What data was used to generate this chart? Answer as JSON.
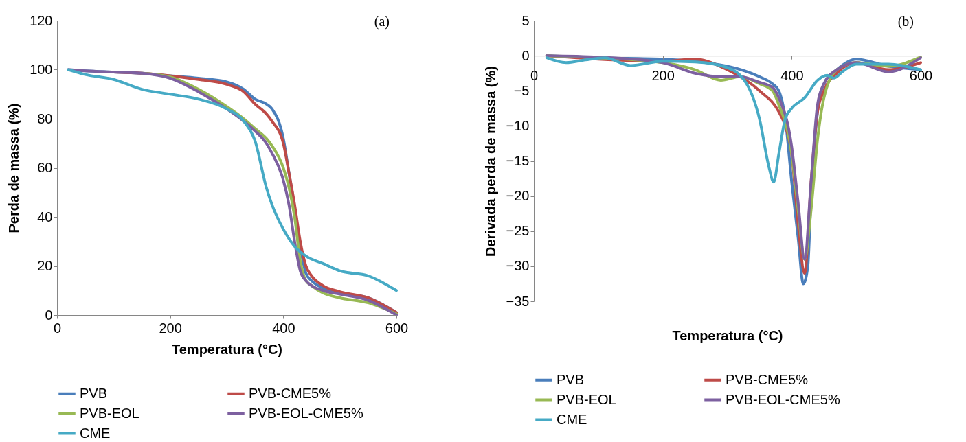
{
  "chart_data": [
    {
      "type": "line",
      "xlabel": "Temperatura (°C)",
      "ylabel": "Perda de massa (%)",
      "annotations": [
        "(a)"
      ],
      "xlim": [
        0,
        600
      ],
      "xticks": [
        0,
        200,
        400,
        600
      ],
      "ylim": [
        0,
        120
      ],
      "yticks": [
        0,
        20,
        40,
        60,
        80,
        100,
        120
      ],
      "grid": false,
      "legend": "bottom",
      "series": [
        {
          "name": "PVB",
          "color": "#4a7ebb",
          "x": [
            20,
            50,
            100,
            150,
            200,
            250,
            300,
            330,
            350,
            370,
            380,
            400,
            410,
            420,
            430,
            440,
            450,
            470,
            500,
            550,
            600
          ],
          "values": [
            100,
            99.5,
            99,
            98.5,
            97.5,
            96.5,
            95,
            92,
            88,
            86,
            84,
            72,
            58,
            44,
            28,
            17,
            14,
            11,
            9,
            7,
            1
          ]
        },
        {
          "name": "PVB-CME5%",
          "color": "#be4b48",
          "x": [
            100,
            150,
            200,
            250,
            300,
            330,
            350,
            370,
            380,
            400,
            410,
            420,
            430,
            440,
            450,
            470,
            500,
            550,
            600
          ],
          "values": [
            99,
            98.5,
            97.5,
            96,
            94,
            91,
            86,
            82,
            79,
            70,
            58,
            45,
            30,
            20,
            16,
            12,
            9.5,
            7,
            1
          ]
        },
        {
          "name": "PVB-EOL",
          "color": "#98b954",
          "x": [
            150,
            200,
            250,
            300,
            330,
            350,
            370,
            380,
            400,
            410,
            420,
            430,
            440,
            450,
            470,
            500,
            550,
            600
          ],
          "values": [
            98.5,
            97,
            92,
            85,
            80,
            76,
            72,
            69,
            60,
            52,
            40,
            22,
            14,
            12,
            9,
            7,
            5,
            0.5
          ]
        },
        {
          "name": "PVB-EOL-CME5%",
          "color": "#7d60a0",
          "x": [
            20,
            50,
            100,
            150,
            200,
            250,
            300,
            330,
            350,
            370,
            380,
            400,
            410,
            420,
            430,
            440,
            450,
            470,
            500,
            550,
            600
          ],
          "values": [
            100,
            99.5,
            99,
            98.5,
            96.5,
            91,
            84,
            79,
            75,
            70,
            66,
            55,
            45,
            30,
            18,
            14,
            12,
            10,
            8.5,
            6,
            0
          ]
        },
        {
          "name": "CME",
          "color": "#46aac5",
          "x": [
            20,
            50,
            100,
            150,
            200,
            250,
            300,
            330,
            350,
            370,
            380,
            400,
            420,
            440,
            470,
            500,
            550,
            600
          ],
          "values": [
            100,
            98,
            96,
            92,
            90,
            88,
            84,
            79,
            71,
            52,
            45,
            35,
            28,
            24,
            21,
            18,
            16,
            10
          ]
        }
      ]
    },
    {
      "type": "line",
      "xlabel": "Temperatura (°C)",
      "ylabel": "Derivada perda de massa (%)",
      "annotations": [
        "(b)"
      ],
      "xlim": [
        0,
        600
      ],
      "xticks": [
        0,
        200,
        400,
        600
      ],
      "ylim": [
        -35,
        5
      ],
      "yticks": [
        -35,
        -30,
        -25,
        -20,
        -15,
        -10,
        -5,
        0,
        5
      ],
      "grid": false,
      "legend": "bottom",
      "series": [
        {
          "name": "PVB",
          "color": "#4a7ebb",
          "x": [
            20,
            100,
            200,
            300,
            350,
            370,
            380,
            390,
            400,
            410,
            418,
            425,
            430,
            440,
            450,
            470,
            500,
            550,
            600
          ],
          "values": [
            0,
            -0.3,
            -0.5,
            -1.5,
            -3,
            -4,
            -5,
            -9,
            -18,
            -26,
            -32.5,
            -30,
            -20,
            -8,
            -4,
            -2,
            -0.5,
            -1.5,
            -2
          ]
        },
        {
          "name": "PVB-CME5%",
          "color": "#be4b48",
          "x": [
            20,
            100,
            200,
            250,
            300,
            350,
            380,
            390,
            400,
            410,
            420,
            430,
            440,
            450,
            470,
            500,
            550,
            600
          ],
          "values": [
            0,
            -0.5,
            -0.8,
            -0.5,
            -2,
            -5,
            -8,
            -10,
            -14,
            -24,
            -31,
            -18,
            -8,
            -5,
            -2.5,
            -1,
            -2,
            -1
          ]
        },
        {
          "name": "PVB-EOL",
          "color": "#98b954",
          "x": [
            20,
            100,
            200,
            250,
            290,
            320,
            350,
            370,
            380,
            400,
            410,
            420,
            430,
            440,
            450,
            470,
            500,
            550,
            600
          ],
          "values": [
            0,
            -0.3,
            -1,
            -2,
            -3.5,
            -3,
            -4,
            -5,
            -7,
            -14,
            -22,
            -29,
            -22,
            -12,
            -6,
            -2,
            -1,
            -1.5,
            -0.2
          ]
        },
        {
          "name": "PVB-EOL-CME5%",
          "color": "#7d60a0",
          "x": [
            20,
            100,
            200,
            250,
            290,
            320,
            350,
            370,
            380,
            400,
            410,
            420,
            430,
            440,
            450,
            470,
            500,
            550,
            600
          ],
          "values": [
            0,
            -0.2,
            -1,
            -2.5,
            -3,
            -3,
            -3.8,
            -4.5,
            -6,
            -13,
            -21,
            -29,
            -18,
            -7,
            -4,
            -2,
            -1,
            -2.3,
            -0.3
          ]
        },
        {
          "name": "CME",
          "color": "#46aac5",
          "x": [
            20,
            50,
            80,
            110,
            150,
            200,
            250,
            300,
            330,
            350,
            365,
            372,
            380,
            390,
            400,
            420,
            440,
            455,
            465,
            480,
            500,
            550,
            600
          ],
          "values": [
            -0.3,
            -1,
            -0.6,
            -0.3,
            -1.4,
            -0.8,
            -0.9,
            -1.7,
            -4,
            -9,
            -16,
            -18,
            -14,
            -9,
            -7.5,
            -6,
            -3.5,
            -2.8,
            -3.2,
            -2.2,
            -1.2,
            -1.2,
            -2
          ]
        }
      ]
    }
  ]
}
